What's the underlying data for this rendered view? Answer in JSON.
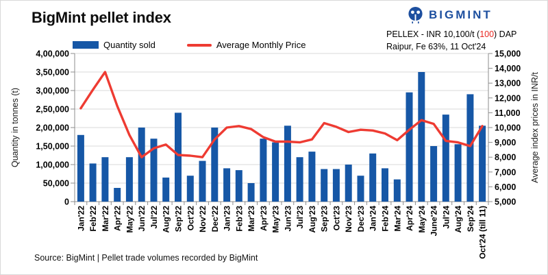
{
  "title": "BigMint pellet index",
  "logo": {
    "text": "BIGMINT"
  },
  "annotation": {
    "line1_prefix": "PELLEX - INR 10,100/t (",
    "line1_change": "100",
    "line1_suffix": ") DAP",
    "line2": "Raipur, Fe 63%, 11 Oct'24"
  },
  "source": "Source: BigMint | Pellet trade volumes recorded by BigMint",
  "colors": {
    "bar": "#1657a6",
    "line": "#ee3b32",
    "logo": "#1d4f9f",
    "negative": "#e8261f",
    "grid": "#d9d9d9",
    "axis": "#8c8c8c"
  },
  "chart_data": {
    "type": "bar+line",
    "title": "BigMint pellet index",
    "legend_position": "top",
    "grid": true,
    "categories": [
      "Jan'22",
      "Feb'22",
      "Mar'22",
      "Apr'22",
      "May'22",
      "Jun'22",
      "Jul'22",
      "Aug'22",
      "Sep'22",
      "Oct'22",
      "Nov'22",
      "Dec'22",
      "Jan'23",
      "Feb'23",
      "Mar'23",
      "Apr'23",
      "May'23",
      "Jun'23",
      "Jul'23",
      "Aug'23",
      "Sep'23",
      "Oct'23",
      "Nov'23",
      "Dec'23",
      "Jan'24",
      "Feb'24",
      "Mar'24",
      "Apr'24",
      "May'24",
      "June'24",
      "Jul'24",
      "Aug'24",
      "Sep'24",
      "Oct'24 (till 11)"
    ],
    "series": [
      {
        "name": "Quantity sold",
        "type": "bar",
        "axis": "left",
        "values": [
          180000,
          103000,
          120000,
          37000,
          120000,
          200000,
          170000,
          65000,
          240000,
          70000,
          110000,
          200000,
          90000,
          85000,
          50000,
          170000,
          160000,
          205000,
          120000,
          135000,
          88000,
          88000,
          100000,
          70000,
          130000,
          90000,
          60000,
          295000,
          350000,
          150000,
          235000,
          155000,
          290000,
          205000
        ]
      },
      {
        "name": "Average Monthly Price",
        "type": "line",
        "axis": "right",
        "values": [
          11300,
          12550,
          13750,
          11450,
          9500,
          8000,
          8600,
          8850,
          8150,
          8100,
          8000,
          9200,
          10000,
          10100,
          9900,
          9350,
          9050,
          9050,
          9000,
          9200,
          10300,
          10050,
          9700,
          9850,
          9800,
          9600,
          9150,
          9850,
          10500,
          10250,
          9100,
          9000,
          8750,
          10100
        ]
      }
    ],
    "left_axis": {
      "label": "Quantity in tonnes (t)",
      "min": 0,
      "max": 400000,
      "step": 50000,
      "tick_labels": [
        "0",
        "50,000",
        "1,00,000",
        "1,50,000",
        "2,00,000",
        "2,50,000",
        "3,00,000",
        "3,50,000",
        "4,00,000"
      ]
    },
    "right_axis": {
      "label": "Average index prices in INR/t",
      "min": 5000,
      "max": 15000,
      "step": 1000,
      "tick_labels": [
        "5,000",
        "6,000",
        "7,000",
        "8,000",
        "9,000",
        "10,000",
        "11,000",
        "12,000",
        "13,000",
        "14,000",
        "15,000"
      ]
    }
  }
}
